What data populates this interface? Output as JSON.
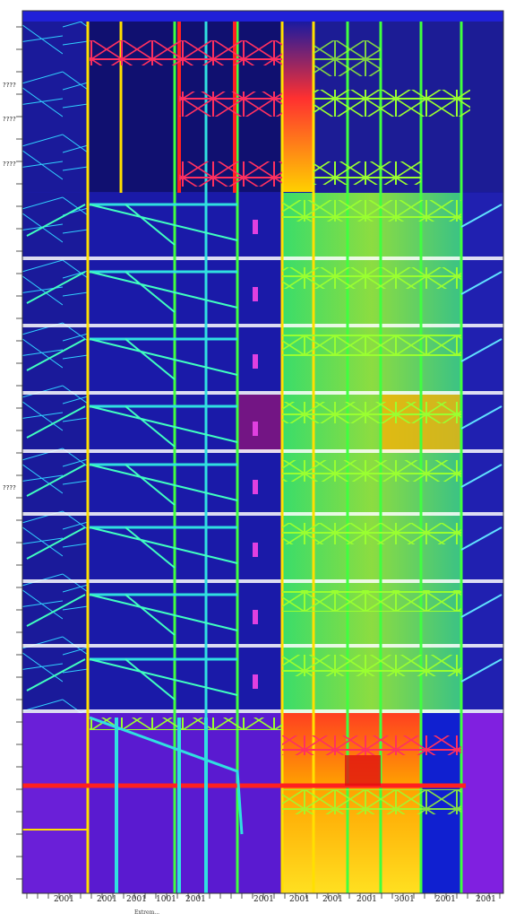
{
  "left_axis_labels": [
    "????",
    "????",
    "????",
    "????"
  ],
  "bottom_axis_labels": [
    "2001",
    "2001",
    "2001",
    "1001",
    "2001",
    "2001",
    "2001",
    "2001",
    "2001",
    "3001",
    "2001",
    "2001"
  ],
  "caption": "Extrem...",
  "colors": {
    "deep_blue": "#1a1aa0",
    "navy": "#101070",
    "violet": "#6a1fd8",
    "magenta": "#e040e0",
    "red": "#ff2020",
    "yellow": "#ffe000",
    "green": "#40ff40",
    "lime": "#a0ff30",
    "cyan": "#30e0e0",
    "orange": "#ff9a00"
  }
}
